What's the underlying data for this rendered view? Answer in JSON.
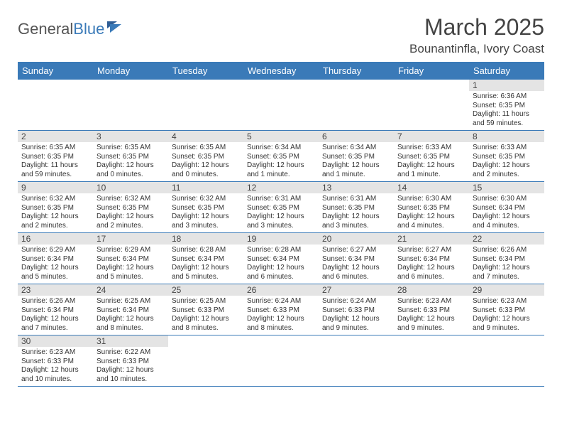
{
  "logo": {
    "general": "General",
    "blue": "Blue"
  },
  "title": "March 2025",
  "location": "Bounantinfla, Ivory Coast",
  "headers": [
    "Sunday",
    "Monday",
    "Tuesday",
    "Wednesday",
    "Thursday",
    "Friday",
    "Saturday"
  ],
  "colors": {
    "header_bg": "#3a7ab8",
    "header_text": "#ffffff",
    "daynum_bg": "#e4e4e4",
    "border": "#3a7ab8",
    "logo_blue": "#3a7ab8"
  },
  "weeks": [
    [
      null,
      null,
      null,
      null,
      null,
      null,
      {
        "n": "1",
        "sr": "Sunrise: 6:36 AM",
        "ss": "Sunset: 6:35 PM",
        "dl": "Daylight: 11 hours and 59 minutes."
      }
    ],
    [
      {
        "n": "2",
        "sr": "Sunrise: 6:35 AM",
        "ss": "Sunset: 6:35 PM",
        "dl": "Daylight: 11 hours and 59 minutes."
      },
      {
        "n": "3",
        "sr": "Sunrise: 6:35 AM",
        "ss": "Sunset: 6:35 PM",
        "dl": "Daylight: 12 hours and 0 minutes."
      },
      {
        "n": "4",
        "sr": "Sunrise: 6:35 AM",
        "ss": "Sunset: 6:35 PM",
        "dl": "Daylight: 12 hours and 0 minutes."
      },
      {
        "n": "5",
        "sr": "Sunrise: 6:34 AM",
        "ss": "Sunset: 6:35 PM",
        "dl": "Daylight: 12 hours and 1 minute."
      },
      {
        "n": "6",
        "sr": "Sunrise: 6:34 AM",
        "ss": "Sunset: 6:35 PM",
        "dl": "Daylight: 12 hours and 1 minute."
      },
      {
        "n": "7",
        "sr": "Sunrise: 6:33 AM",
        "ss": "Sunset: 6:35 PM",
        "dl": "Daylight: 12 hours and 1 minute."
      },
      {
        "n": "8",
        "sr": "Sunrise: 6:33 AM",
        "ss": "Sunset: 6:35 PM",
        "dl": "Daylight: 12 hours and 2 minutes."
      }
    ],
    [
      {
        "n": "9",
        "sr": "Sunrise: 6:32 AM",
        "ss": "Sunset: 6:35 PM",
        "dl": "Daylight: 12 hours and 2 minutes."
      },
      {
        "n": "10",
        "sr": "Sunrise: 6:32 AM",
        "ss": "Sunset: 6:35 PM",
        "dl": "Daylight: 12 hours and 2 minutes."
      },
      {
        "n": "11",
        "sr": "Sunrise: 6:32 AM",
        "ss": "Sunset: 6:35 PM",
        "dl": "Daylight: 12 hours and 3 minutes."
      },
      {
        "n": "12",
        "sr": "Sunrise: 6:31 AM",
        "ss": "Sunset: 6:35 PM",
        "dl": "Daylight: 12 hours and 3 minutes."
      },
      {
        "n": "13",
        "sr": "Sunrise: 6:31 AM",
        "ss": "Sunset: 6:35 PM",
        "dl": "Daylight: 12 hours and 3 minutes."
      },
      {
        "n": "14",
        "sr": "Sunrise: 6:30 AM",
        "ss": "Sunset: 6:35 PM",
        "dl": "Daylight: 12 hours and 4 minutes."
      },
      {
        "n": "15",
        "sr": "Sunrise: 6:30 AM",
        "ss": "Sunset: 6:34 PM",
        "dl": "Daylight: 12 hours and 4 minutes."
      }
    ],
    [
      {
        "n": "16",
        "sr": "Sunrise: 6:29 AM",
        "ss": "Sunset: 6:34 PM",
        "dl": "Daylight: 12 hours and 5 minutes."
      },
      {
        "n": "17",
        "sr": "Sunrise: 6:29 AM",
        "ss": "Sunset: 6:34 PM",
        "dl": "Daylight: 12 hours and 5 minutes."
      },
      {
        "n": "18",
        "sr": "Sunrise: 6:28 AM",
        "ss": "Sunset: 6:34 PM",
        "dl": "Daylight: 12 hours and 5 minutes."
      },
      {
        "n": "19",
        "sr": "Sunrise: 6:28 AM",
        "ss": "Sunset: 6:34 PM",
        "dl": "Daylight: 12 hours and 6 minutes."
      },
      {
        "n": "20",
        "sr": "Sunrise: 6:27 AM",
        "ss": "Sunset: 6:34 PM",
        "dl": "Daylight: 12 hours and 6 minutes."
      },
      {
        "n": "21",
        "sr": "Sunrise: 6:27 AM",
        "ss": "Sunset: 6:34 PM",
        "dl": "Daylight: 12 hours and 6 minutes."
      },
      {
        "n": "22",
        "sr": "Sunrise: 6:26 AM",
        "ss": "Sunset: 6:34 PM",
        "dl": "Daylight: 12 hours and 7 minutes."
      }
    ],
    [
      {
        "n": "23",
        "sr": "Sunrise: 6:26 AM",
        "ss": "Sunset: 6:34 PM",
        "dl": "Daylight: 12 hours and 7 minutes."
      },
      {
        "n": "24",
        "sr": "Sunrise: 6:25 AM",
        "ss": "Sunset: 6:34 PM",
        "dl": "Daylight: 12 hours and 8 minutes."
      },
      {
        "n": "25",
        "sr": "Sunrise: 6:25 AM",
        "ss": "Sunset: 6:33 PM",
        "dl": "Daylight: 12 hours and 8 minutes."
      },
      {
        "n": "26",
        "sr": "Sunrise: 6:24 AM",
        "ss": "Sunset: 6:33 PM",
        "dl": "Daylight: 12 hours and 8 minutes."
      },
      {
        "n": "27",
        "sr": "Sunrise: 6:24 AM",
        "ss": "Sunset: 6:33 PM",
        "dl": "Daylight: 12 hours and 9 minutes."
      },
      {
        "n": "28",
        "sr": "Sunrise: 6:23 AM",
        "ss": "Sunset: 6:33 PM",
        "dl": "Daylight: 12 hours and 9 minutes."
      },
      {
        "n": "29",
        "sr": "Sunrise: 6:23 AM",
        "ss": "Sunset: 6:33 PM",
        "dl": "Daylight: 12 hours and 9 minutes."
      }
    ],
    [
      {
        "n": "30",
        "sr": "Sunrise: 6:23 AM",
        "ss": "Sunset: 6:33 PM",
        "dl": "Daylight: 12 hours and 10 minutes."
      },
      {
        "n": "31",
        "sr": "Sunrise: 6:22 AM",
        "ss": "Sunset: 6:33 PM",
        "dl": "Daylight: 12 hours and 10 minutes."
      },
      null,
      null,
      null,
      null,
      null
    ]
  ]
}
